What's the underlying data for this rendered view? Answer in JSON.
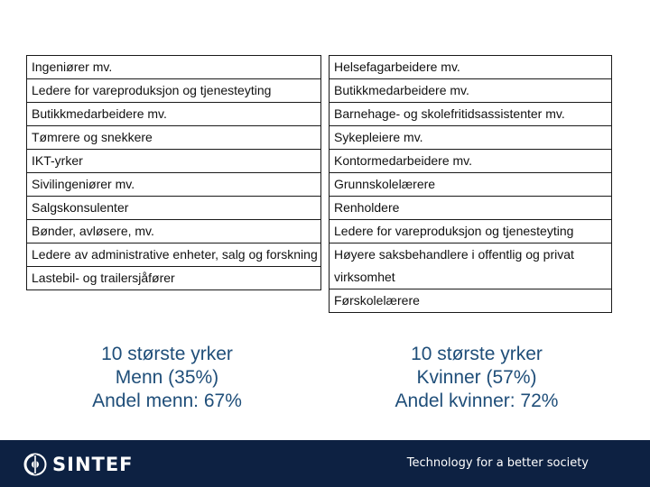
{
  "men_table": {
    "rows": [
      "Ingeniører mv.",
      "Ledere for vareproduksjon og tjenesteyting",
      "Butikkmedarbeidere mv.",
      "Tømrere og snekkere",
      "IKT-yrker",
      "Sivilingeniører mv.",
      "Salgskonsulenter",
      "Bønder, avløsere, mv.",
      "Ledere av administrative enheter, salg og forskning",
      "Lastebil- og trailersjåfører"
    ]
  },
  "women_table": {
    "rows": [
      "Helsefagarbeidere mv.",
      "Butikkmedarbeidere mv.",
      "Barnehage- og skolefritidsassistenter mv.",
      "Sykepleiere mv.",
      "Kontormedarbeidere mv.",
      "Grunnskolelærere",
      "Renholdere",
      "Ledere for vareproduksjon og tjenesteyting",
      "Høyere saksbehandlere i offentlig og privat virksomhet",
      "Førskolelærere"
    ]
  },
  "captions": {
    "men": {
      "line1": "10 største yrker",
      "line2": "Menn (35%)",
      "line3": "Andel menn: 67%"
    },
    "women": {
      "line1": "10 største yrker",
      "line2": "Kvinner (57%)",
      "line3": "Andel kvinner: 72%"
    }
  },
  "footer": {
    "logo_text": "SINTEF",
    "tagline": "Technology for a better society",
    "background_color": "#0d2142"
  },
  "colors": {
    "caption_text": "#1f4e79"
  }
}
